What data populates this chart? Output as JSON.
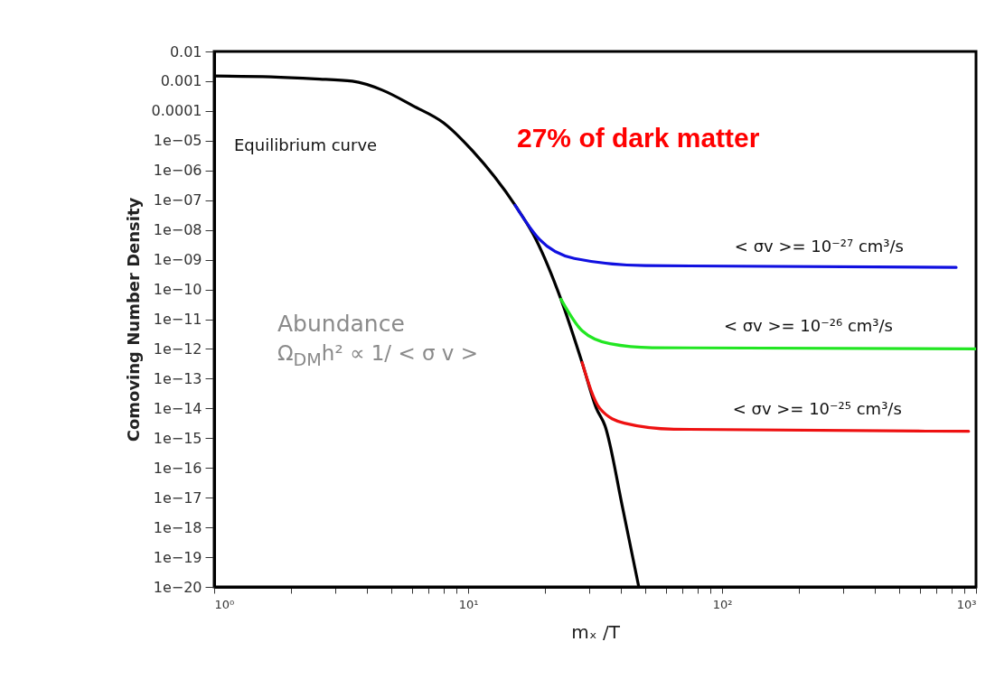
{
  "chart_data": {
    "type": "line",
    "xlabel": "mₓ /T",
    "ylabel": "Comoving Number Density",
    "log": "xy",
    "xlim": [
      1,
      1000
    ],
    "ylim": [
      1e-20,
      0.01
    ],
    "xticks": [
      {
        "value": 1,
        "label": "10⁰"
      },
      {
        "value": 2,
        "label": null
      },
      {
        "value": 3,
        "label": null
      },
      {
        "value": 4,
        "label": null
      },
      {
        "value": 5,
        "label": null
      },
      {
        "value": 6,
        "label": null
      },
      {
        "value": 7,
        "label": null
      },
      {
        "value": 8,
        "label": null
      },
      {
        "value": 9,
        "label": null
      },
      {
        "value": 10,
        "label": "10¹"
      },
      {
        "value": 20,
        "label": null
      },
      {
        "value": 30,
        "label": null
      },
      {
        "value": 40,
        "label": null
      },
      {
        "value": 50,
        "label": null
      },
      {
        "value": 60,
        "label": null
      },
      {
        "value": 70,
        "label": null
      },
      {
        "value": 80,
        "label": null
      },
      {
        "value": 90,
        "label": null
      },
      {
        "value": 100,
        "label": "10²"
      },
      {
        "value": 200,
        "label": null
      },
      {
        "value": 300,
        "label": null
      },
      {
        "value": 400,
        "label": null
      },
      {
        "value": 500,
        "label": null
      },
      {
        "value": 600,
        "label": null
      },
      {
        "value": 700,
        "label": null
      },
      {
        "value": 800,
        "label": null
      },
      {
        "value": 900,
        "label": null
      },
      {
        "value": 1000,
        "label": "10³"
      }
    ],
    "yticks": [
      0.01,
      0.001,
      0.0001,
      {
        "value": 1e-05,
        "label": "1e−05"
      },
      {
        "value": 1e-06,
        "label": "1e−06"
      },
      {
        "value": 1e-07,
        "label": "1e−07"
      },
      {
        "value": 1e-08,
        "label": "1e−08"
      },
      {
        "value": 1e-09,
        "label": "1e−09"
      },
      {
        "value": 1e-10,
        "label": "1e−10"
      },
      {
        "value": 1e-11,
        "label": "1e−11"
      },
      {
        "value": 1e-12,
        "label": "1e−12"
      },
      {
        "value": 1e-13,
        "label": "1e−13"
      },
      {
        "value": 1e-14,
        "label": "1e−14"
      },
      {
        "value": 1e-15,
        "label": "1e−15"
      },
      {
        "value": 1e-16,
        "label": "1e−16"
      },
      {
        "value": 1e-17,
        "label": "1e−17"
      },
      {
        "value": 1e-18,
        "label": "1e−18"
      },
      {
        "value": 1e-19,
        "label": "1e−19"
      },
      {
        "value": 1e-20,
        "label": "1e−20"
      }
    ],
    "grid": false,
    "marker": "none",
    "line_style": "solid",
    "series": [
      {
        "name": "Equilibrium curve",
        "color": "#000000",
        "x": [
          1,
          1.67,
          2.5,
          3.5,
          4.6,
          6.06,
          8,
          10.4,
          15.3,
          18.5,
          23.2,
          28.1,
          32,
          34.6,
          40.6,
          47
        ],
        "values": [
          0.0015,
          0.0014,
          0.0012,
          0.001,
          0.0005,
          0.00015,
          4e-05,
          4.6e-06,
          6.8e-08,
          4.8e-09,
          4.7e-11,
          3.5e-13,
          1e-14,
          2.6e-15,
          4.5e-18,
          1e-20
        ]
      },
      {
        "name": "< σv >= 10⁻²⁷ cm³/s",
        "color": "#1010e0",
        "x": [
          15.3,
          19.1,
          26.2,
          49.9,
          835
        ],
        "values": [
          6.8e-08,
          4.8e-09,
          1.1e-09,
          6.3e-10,
          5.5e-10
        ]
      },
      {
        "name": "< σv >= 10⁻²⁶ cm³/s",
        "color": "#22e622",
        "x": [
          23.2,
          28.1,
          36.2,
          53,
          1000
        ],
        "values": [
          4.7e-11,
          4.1e-12,
          1.5e-12,
          1.1e-12,
          1e-12
        ]
      },
      {
        "name": "< σv >= 10⁻²⁵ cm³/s",
        "color": "#ee1111",
        "x": [
          28.1,
          33,
          41.2,
          64.6,
          935
        ],
        "values": [
          3.5e-13,
          1e-14,
          3.2e-15,
          2e-15,
          1.7e-15
        ]
      }
    ],
    "annotations": [
      "27% of dark matter",
      "Abundance",
      "Ω$_{DM}$h² ∝ 1/ < σ v >"
    ]
  }
}
